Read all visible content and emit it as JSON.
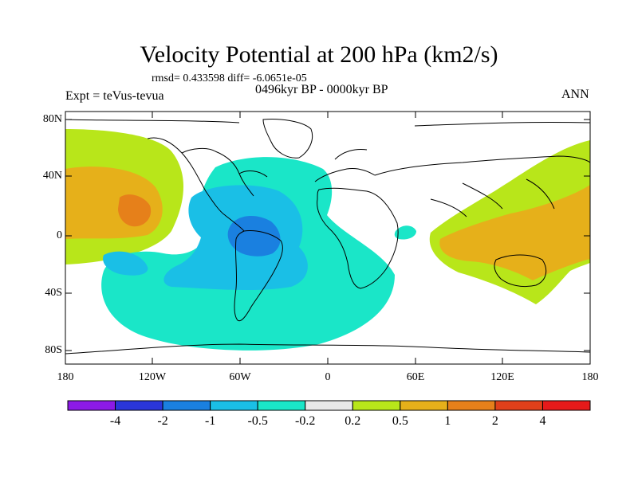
{
  "title": "Velocity Potential at 200 hPa (km2/s)",
  "stats": "rmsd= 0.433598 diff= -6.0651e-05",
  "experiment": "Expt = teVus-tevua",
  "period": "0496kyr BP - 0000kyr BP",
  "season": "ANN",
  "lat_labels": [
    "80N",
    "40N",
    "0",
    "40S",
    "80S"
  ],
  "lon_labels": [
    "180",
    "120W",
    "60W",
    "0",
    "60E",
    "120E",
    "180"
  ],
  "colorbar": {
    "labels": [
      "-4",
      "-2",
      "-1",
      "-0.5",
      "-0.2",
      "0.2",
      "0.5",
      "1",
      "2",
      "4"
    ],
    "colors": [
      "#8c1ae6",
      "#2a36d9",
      "#1a80e0",
      "#1abfe6",
      "#1ae6c8",
      "#e8e8e8",
      "#b8e61a",
      "#e6b01a",
      "#e6801a",
      "#e0401a",
      "#e61a1a"
    ]
  }
}
